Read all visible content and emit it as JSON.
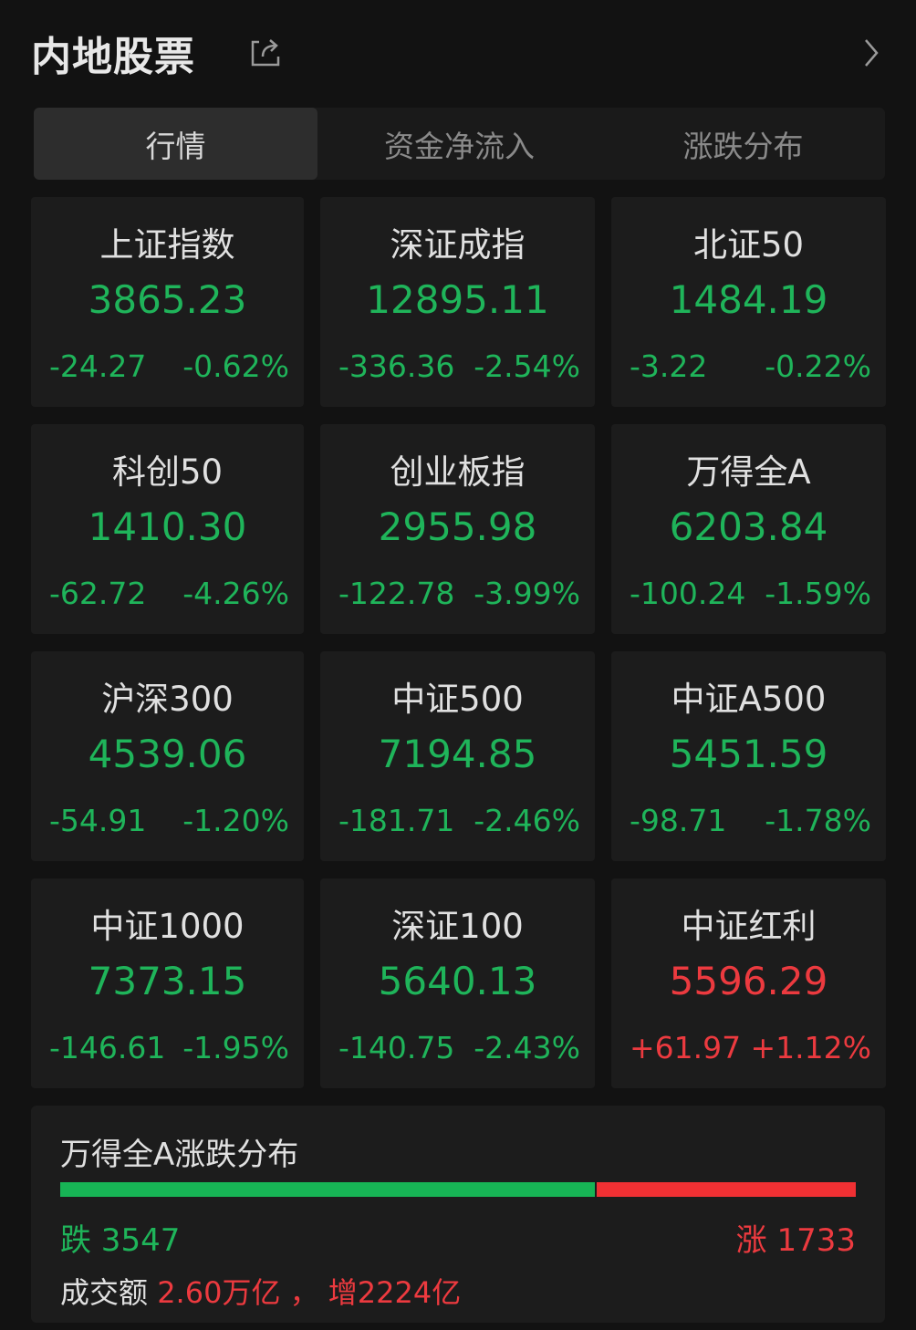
{
  "header": {
    "title": "内地股票",
    "share_icon": "share-icon",
    "more_icon": "chevron-right-icon"
  },
  "tabs": [
    {
      "label": "行情",
      "active": true
    },
    {
      "label": "资金净流入",
      "active": false
    },
    {
      "label": "涨跌分布",
      "active": false
    }
  ],
  "colors": {
    "up": "#ec3a3f",
    "down": "#1fb45a",
    "background": "#121212",
    "card": "#1c1c1c"
  },
  "indices": [
    {
      "name": "上证指数",
      "price": "3865.23",
      "change": "-24.27",
      "pct": "-0.62%",
      "dir": "down"
    },
    {
      "name": "深证成指",
      "price": "12895.11",
      "change": "-336.36",
      "pct": "-2.54%",
      "dir": "down"
    },
    {
      "name": "北证50",
      "price": "1484.19",
      "change": "-3.22",
      "pct": "-0.22%",
      "dir": "down"
    },
    {
      "name": "科创50",
      "price": "1410.30",
      "change": "-62.72",
      "pct": "-4.26%",
      "dir": "down"
    },
    {
      "name": "创业板指",
      "price": "2955.98",
      "change": "-122.78",
      "pct": "-3.99%",
      "dir": "down"
    },
    {
      "name": "万得全A",
      "price": "6203.84",
      "change": "-100.24",
      "pct": "-1.59%",
      "dir": "down"
    },
    {
      "name": "沪深300",
      "price": "4539.06",
      "change": "-54.91",
      "pct": "-1.20%",
      "dir": "down"
    },
    {
      "name": "中证500",
      "price": "7194.85",
      "change": "-181.71",
      "pct": "-2.46%",
      "dir": "down"
    },
    {
      "name": "中证A500",
      "price": "5451.59",
      "change": "-98.71",
      "pct": "-1.78%",
      "dir": "down"
    },
    {
      "name": "中证1000",
      "price": "7373.15",
      "change": "-146.61",
      "pct": "-1.95%",
      "dir": "down"
    },
    {
      "name": "深证100",
      "price": "5640.13",
      "change": "-140.75",
      "pct": "-2.43%",
      "dir": "down"
    },
    {
      "name": "中证红利",
      "price": "5596.29",
      "change": "+61.97",
      "pct": "+1.12%",
      "dir": "up"
    }
  ],
  "distribution": {
    "title": "万得全A涨跌分布",
    "down_label": "跌 3547",
    "down_count": 3547,
    "up_label": "涨 1733",
    "up_count": 1733,
    "volume_label": "成交额",
    "volume_value": "2.60万亿 ，",
    "volume_change": "增2224亿"
  }
}
